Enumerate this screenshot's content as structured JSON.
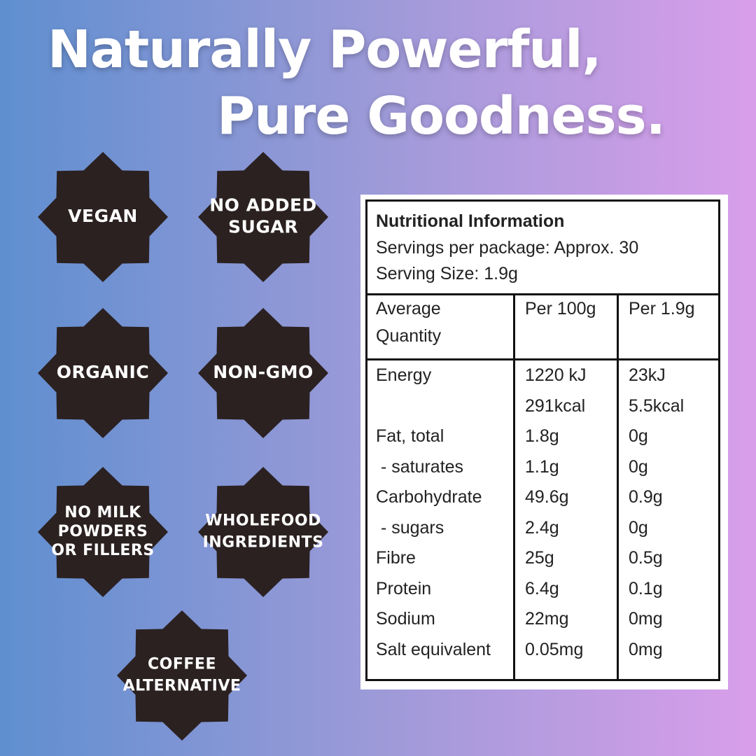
{
  "title": {
    "line1": "Naturally Powerful,",
    "line2": "Pure Goodness."
  },
  "badges": [
    {
      "lines": [
        "VEGAN"
      ]
    },
    {
      "lines": [
        "NO ADDED",
        "SUGAR"
      ]
    },
    {
      "lines": [
        "ORGANIC"
      ]
    },
    {
      "lines": [
        "NON-GMO"
      ]
    },
    {
      "lines": [
        "NO MILK",
        "POWDERS",
        "OR FILLERS"
      ]
    },
    {
      "lines": [
        "WHOLEFOOD",
        "INGREDIENTS"
      ]
    },
    {
      "lines": [
        "COFFEE",
        "ALTERNATIVE"
      ]
    }
  ],
  "nutrition": {
    "heading": "Nutritional Information",
    "servings": "Servings per package: Approx. 30",
    "serving_size": "Serving Size: 1.9g",
    "columns": [
      [
        "Average",
        "Quantity"
      ],
      [
        "Per 100g"
      ],
      [
        "Per 1.9g"
      ]
    ],
    "rows": [
      [
        [
          "Energy"
        ],
        [
          "1220 kJ",
          "291kcal"
        ],
        [
          "23kJ",
          "5.5kcal"
        ]
      ],
      [
        [
          "Fat, total"
        ],
        [
          "1.8g"
        ],
        [
          "0g"
        ]
      ],
      [
        [
          " - saturates"
        ],
        [
          "1.1g"
        ],
        [
          "0g"
        ]
      ],
      [
        [
          "Carbohydrate"
        ],
        [
          "49.6g"
        ],
        [
          "0.9g"
        ]
      ],
      [
        [
          " - sugars"
        ],
        [
          "2.4g"
        ],
        [
          "0g"
        ]
      ],
      [
        [
          "Fibre"
        ],
        [
          "25g"
        ],
        [
          "0.5g"
        ]
      ],
      [
        [
          "Protein"
        ],
        [
          "6.4g"
        ],
        [
          "0.1g"
        ]
      ],
      [
        [
          "Sodium"
        ],
        [
          "22mg"
        ],
        [
          "0mg"
        ]
      ],
      [
        [
          "Salt equivalent"
        ],
        [
          "0.05mg"
        ],
        [
          "0mg"
        ]
      ]
    ]
  }
}
